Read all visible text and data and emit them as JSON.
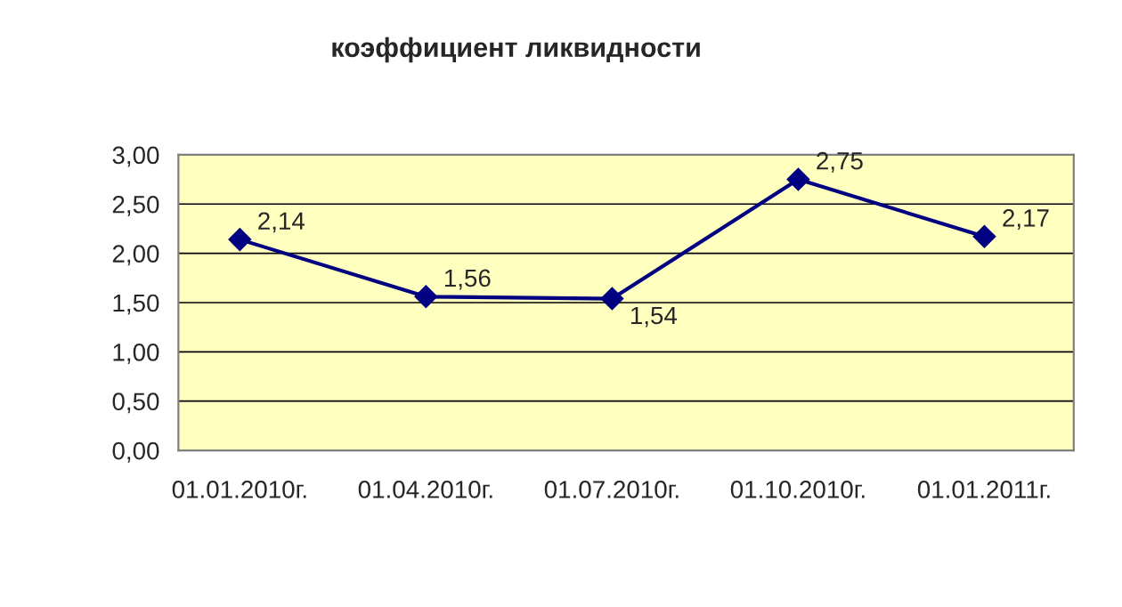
{
  "chart_data": {
    "type": "line",
    "title": "коэффициент ликвидности",
    "categories": [
      "01.01.2010г.",
      "01.04.2010г.",
      "01.07.2010г.",
      "01.10.2010г.",
      "01.01.2011г."
    ],
    "series": [
      {
        "color": "#000080",
        "values": [
          2.14,
          1.56,
          1.54,
          2.75,
          2.17
        ],
        "value_labels": [
          "2,14",
          "1,56",
          "1,54",
          "2,75",
          "2,17"
        ]
      }
    ],
    "ylim": [
      0,
      3
    ],
    "yticks": [
      {
        "value": 0,
        "label": "0,00"
      },
      {
        "value": 0.5,
        "label": "0,50"
      },
      {
        "value": 1,
        "label": "1,00"
      },
      {
        "value": 1.5,
        "label": "1,50"
      },
      {
        "value": 2,
        "label": "2,00"
      },
      {
        "value": 2.5,
        "label": "2,50"
      },
      {
        "value": 3,
        "label": "3,00"
      }
    ],
    "grid": "y",
    "marker": "diamond",
    "line_style": "solid"
  }
}
